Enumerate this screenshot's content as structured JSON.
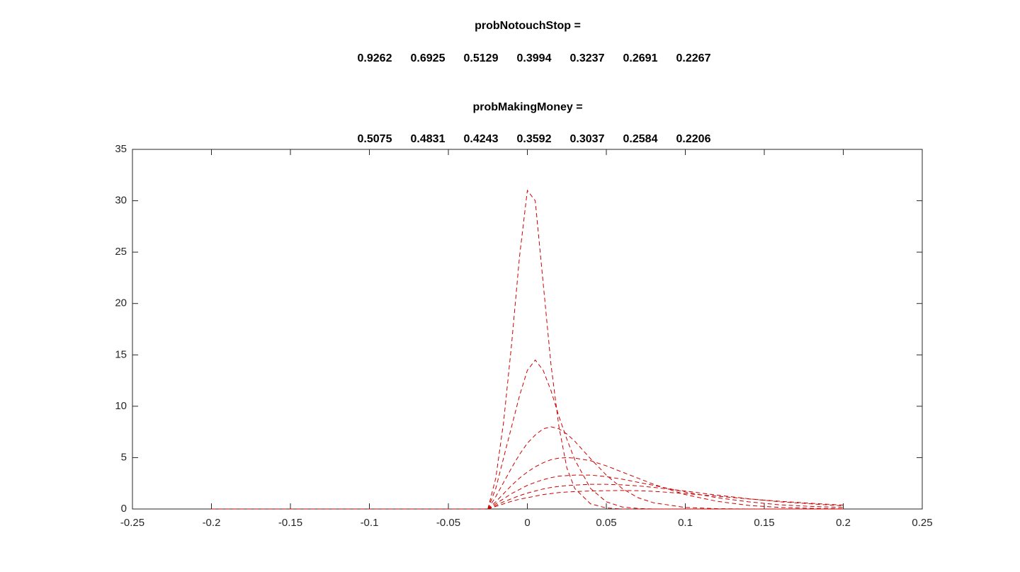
{
  "chart_data": {
    "type": "line",
    "annotations": [
      {
        "label": "probNotouchStop =",
        "values": [
          0.9262,
          0.6925,
          0.5129,
          0.3994,
          0.3237,
          0.2691,
          0.2267
        ]
      },
      {
        "label": "probMakingMoney =",
        "values": [
          0.5075,
          0.4831,
          0.4243,
          0.3592,
          0.3037,
          0.2584,
          0.2206
        ]
      }
    ],
    "x": [
      -0.2,
      -0.15,
      -0.1,
      -0.05,
      -0.025,
      -0.02,
      -0.015,
      -0.01,
      -0.005,
      0,
      0.005,
      0.01,
      0.015,
      0.02,
      0.025,
      0.03,
      0.04,
      0.05,
      0.06,
      0.07,
      0.08,
      0.1,
      0.12,
      0.14,
      0.16,
      0.18,
      0.2
    ],
    "series": [
      {
        "color": "#cc0000",
        "values": [
          0,
          0,
          0,
          0,
          0,
          3,
          8.5,
          16,
          24.5,
          31,
          30,
          22,
          14,
          8,
          4,
          2,
          0.5,
          0.1,
          0,
          0,
          0,
          0,
          0,
          0,
          0,
          0,
          0
        ]
      },
      {
        "color": "#cc0000",
        "values": [
          0,
          0,
          0,
          0,
          0,
          2,
          5,
          8,
          11,
          13.5,
          14.5,
          13.5,
          11.5,
          9,
          6.8,
          4.8,
          2,
          0.7,
          0.2,
          0.05,
          0,
          0,
          0,
          0,
          0,
          0,
          0
        ]
      },
      {
        "color": "#cc0000",
        "values": [
          0,
          0,
          0,
          0,
          0,
          1.2,
          2.6,
          4,
          5.3,
          6.4,
          7.2,
          7.8,
          8,
          7.8,
          7.3,
          6.6,
          4.9,
          3.3,
          2,
          1.1,
          0.6,
          0.15,
          0.03,
          0,
          0,
          0,
          0
        ]
      },
      {
        "color": "#cc0000",
        "values": [
          0,
          0,
          0,
          0,
          0,
          0.7,
          1.5,
          2.3,
          3,
          3.6,
          4.1,
          4.5,
          4.8,
          4.95,
          5,
          4.95,
          4.7,
          4.2,
          3.6,
          3,
          2.4,
          1.4,
          0.75,
          0.35,
          0.15,
          0.06,
          0.02
        ]
      },
      {
        "color": "#cc0000",
        "values": [
          0,
          0,
          0,
          0,
          0,
          0.5,
          1,
          1.5,
          1.9,
          2.3,
          2.6,
          2.85,
          3.05,
          3.2,
          3.25,
          3.3,
          3.3,
          3.15,
          2.9,
          2.6,
          2.3,
          1.65,
          1.1,
          0.7,
          0.4,
          0.25,
          0.15
        ]
      },
      {
        "color": "#cc0000",
        "values": [
          0,
          0,
          0,
          0,
          0,
          0.35,
          0.7,
          1,
          1.3,
          1.55,
          1.75,
          1.95,
          2.1,
          2.2,
          2.28,
          2.33,
          2.4,
          2.4,
          2.35,
          2.25,
          2.1,
          1.75,
          1.35,
          1,
          0.7,
          0.5,
          0.3
        ]
      },
      {
        "color": "#cc0000",
        "values": [
          0,
          0,
          0,
          0,
          0,
          0.25,
          0.5,
          0.75,
          0.95,
          1.1,
          1.25,
          1.4,
          1.5,
          1.6,
          1.65,
          1.7,
          1.75,
          1.78,
          1.8,
          1.78,
          1.72,
          1.5,
          1.25,
          0.98,
          0.75,
          0.55,
          0.38
        ]
      }
    ],
    "line_style": "dashed",
    "xlim": [
      -0.25,
      0.25
    ],
    "xticks": [
      -0.25,
      -0.2,
      -0.15,
      -0.1,
      -0.05,
      0,
      0.05,
      0.1,
      0.15,
      0.2,
      0.25
    ],
    "ylim": [
      0,
      35
    ],
    "yticks": [
      0,
      5,
      10,
      15,
      20,
      25,
      30,
      35
    ],
    "grid": false
  }
}
